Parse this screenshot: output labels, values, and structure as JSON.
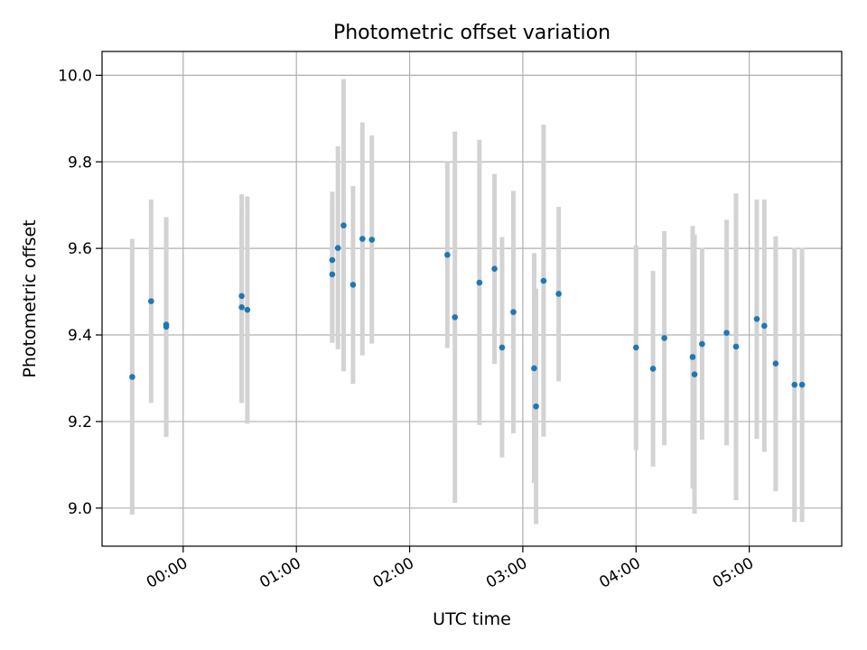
{
  "chart_data": {
    "type": "scatter",
    "title": "Photometric offset variation",
    "xlabel": "UTC time",
    "ylabel": "Photometric offset",
    "x_unit": "UTC time of day (HH:MM)",
    "xlim": [
      "23:17",
      "05:49"
    ],
    "ylim": [
      8.912,
      10.055
    ],
    "grid": true,
    "x_ticks": [
      "00:00",
      "01:00",
      "02:00",
      "03:00",
      "04:00",
      "05:00"
    ],
    "y_ticks": [
      "9.0",
      "9.2",
      "9.4",
      "9.6",
      "9.8",
      "10.0"
    ],
    "colors": {
      "points": "#1f77b4",
      "errorbars": "#d3d3d3",
      "grid": "#b0b0b0"
    },
    "points": [
      {
        "x": "23:33",
        "y": 9.303,
        "ylow": 8.985,
        "yhigh": 9.622
      },
      {
        "x": "23:43",
        "y": 9.478,
        "ylow": 9.243,
        "yhigh": 9.713
      },
      {
        "x": "23:51",
        "y": 9.424,
        "ylow": 9.165,
        "yhigh": 9.672
      },
      {
        "x": "23:51",
        "y": 9.419,
        "ylow": 9.165,
        "yhigh": 9.672
      },
      {
        "x": "00:31",
        "y": 9.49,
        "ylow": 9.243,
        "yhigh": 9.725
      },
      {
        "x": "00:31",
        "y": 9.464,
        "ylow": 9.243,
        "yhigh": 9.69
      },
      {
        "x": "00:34",
        "y": 9.458,
        "ylow": 9.195,
        "yhigh": 9.72
      },
      {
        "x": "01:19",
        "y": 9.573,
        "ylow": 9.382,
        "yhigh": 9.731
      },
      {
        "x": "01:19",
        "y": 9.54,
        "ylow": 9.382,
        "yhigh": 9.7
      },
      {
        "x": "01:22",
        "y": 9.601,
        "ylow": 9.367,
        "yhigh": 9.836
      },
      {
        "x": "01:25",
        "y": 9.653,
        "ylow": 9.316,
        "yhigh": 9.991
      },
      {
        "x": "01:30",
        "y": 9.516,
        "ylow": 9.287,
        "yhigh": 9.744
      },
      {
        "x": "01:35",
        "y": 9.622,
        "ylow": 9.353,
        "yhigh": 9.891
      },
      {
        "x": "01:40",
        "y": 9.62,
        "ylow": 9.38,
        "yhigh": 9.861
      },
      {
        "x": "02:20",
        "y": 9.585,
        "ylow": 9.37,
        "yhigh": 9.8
      },
      {
        "x": "02:24",
        "y": 9.441,
        "ylow": 9.012,
        "yhigh": 9.87
      },
      {
        "x": "02:37",
        "y": 9.521,
        "ylow": 9.192,
        "yhigh": 9.851
      },
      {
        "x": "02:45",
        "y": 9.553,
        "ylow": 9.333,
        "yhigh": 9.772
      },
      {
        "x": "02:49",
        "y": 9.371,
        "ylow": 9.117,
        "yhigh": 9.626
      },
      {
        "x": "02:55",
        "y": 9.453,
        "ylow": 9.173,
        "yhigh": 9.733
      },
      {
        "x": "03:06",
        "y": 9.323,
        "ylow": 9.058,
        "yhigh": 9.589
      },
      {
        "x": "03:07",
        "y": 9.235,
        "ylow": 8.963,
        "yhigh": 9.507
      },
      {
        "x": "03:11",
        "y": 9.525,
        "ylow": 9.165,
        "yhigh": 9.886
      },
      {
        "x": "03:19",
        "y": 9.495,
        "ylow": 9.293,
        "yhigh": 9.696
      },
      {
        "x": "04:00",
        "y": 9.371,
        "ylow": 9.134,
        "yhigh": 9.607
      },
      {
        "x": "04:09",
        "y": 9.322,
        "ylow": 9.096,
        "yhigh": 9.548
      },
      {
        "x": "04:15",
        "y": 9.393,
        "ylow": 9.145,
        "yhigh": 9.64
      },
      {
        "x": "04:30",
        "y": 9.349,
        "ylow": 9.045,
        "yhigh": 9.652
      },
      {
        "x": "04:31",
        "y": 9.309,
        "ylow": 8.987,
        "yhigh": 9.632
      },
      {
        "x": "04:35",
        "y": 9.379,
        "ylow": 9.158,
        "yhigh": 9.601
      },
      {
        "x": "04:48",
        "y": 9.405,
        "ylow": 9.145,
        "yhigh": 9.666
      },
      {
        "x": "04:53",
        "y": 9.373,
        "ylow": 9.018,
        "yhigh": 9.727
      },
      {
        "x": "05:04",
        "y": 9.437,
        "ylow": 9.16,
        "yhigh": 9.713
      },
      {
        "x": "05:08",
        "y": 9.421,
        "ylow": 9.13,
        "yhigh": 9.713
      },
      {
        "x": "05:14",
        "y": 9.334,
        "ylow": 9.039,
        "yhigh": 9.628
      },
      {
        "x": "05:24",
        "y": 9.285,
        "ylow": 8.968,
        "yhigh": 9.601
      },
      {
        "x": "05:28",
        "y": 9.285,
        "ylow": 8.968,
        "yhigh": 9.601
      }
    ]
  }
}
